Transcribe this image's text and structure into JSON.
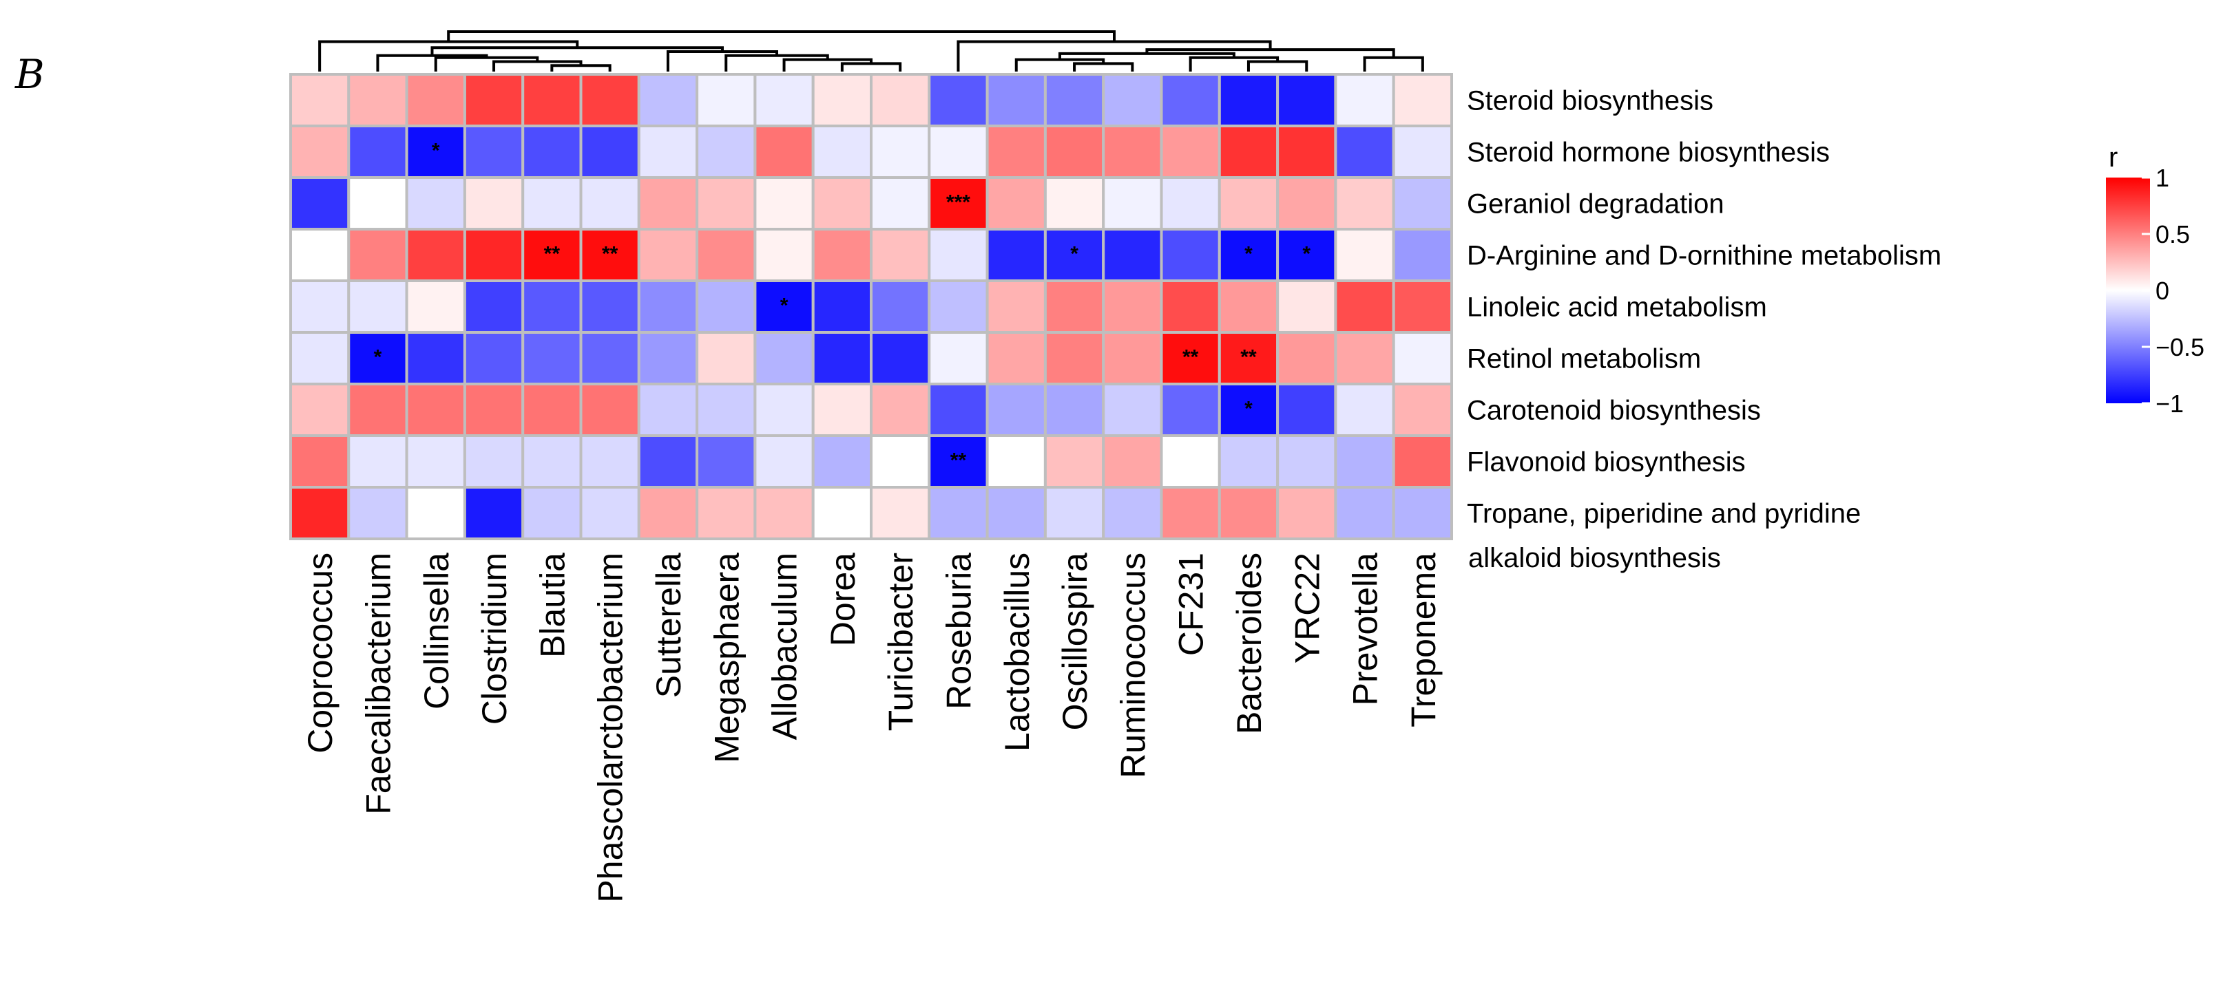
{
  "panel_label": "B",
  "chart_data": {
    "type": "heatmap",
    "title": "",
    "rows": [
      "Steroid biosynthesis",
      "Steroid hormone biosynthesis",
      "Geraniol degradation",
      "D-Arginine and D-ornithine metabolism",
      "Linoleic acid metabolism",
      "Retinol metabolism",
      "Carotenoid biosynthesis",
      "Flavonoid biosynthesis",
      "Tropane, piperidine and pyridine"
    ],
    "row_label_continuation": "alkaloid biosynthesis",
    "columns": [
      "Coprococcus",
      "Faecalibacterium",
      "Collinsella",
      "Clostridium",
      "Blautia",
      "Phascolarctobacterium",
      "Sutterella",
      "Megasphaera",
      "Allobaculum",
      "Dorea",
      "Turicibacter",
      "Roseburia",
      "Lactobacillus",
      "Oscillospira",
      "Ruminococcus",
      "CF231",
      "Bacteroides",
      "YRC22",
      "Prevotella",
      "Treponema"
    ],
    "values": [
      [
        0.2,
        0.3,
        0.45,
        0.75,
        0.75,
        0.75,
        -0.25,
        -0.05,
        -0.08,
        0.1,
        0.15,
        -0.65,
        -0.45,
        -0.5,
        -0.3,
        -0.6,
        -0.9,
        -0.9,
        -0.05,
        0.1
      ],
      [
        0.3,
        -0.7,
        -0.95,
        -0.65,
        -0.7,
        -0.75,
        -0.1,
        -0.2,
        0.55,
        -0.1,
        -0.05,
        -0.05,
        0.5,
        0.55,
        0.5,
        0.4,
        0.8,
        0.8,
        -0.7,
        -0.1
      ],
      [
        -0.8,
        0.0,
        -0.15,
        0.1,
        -0.1,
        -0.1,
        0.35,
        0.25,
        0.05,
        0.25,
        -0.05,
        0.95,
        0.35,
        0.05,
        -0.05,
        -0.1,
        0.25,
        0.35,
        0.2,
        -0.25
      ],
      [
        0.0,
        0.5,
        0.75,
        0.85,
        0.95,
        0.95,
        0.3,
        0.45,
        0.05,
        0.45,
        0.25,
        -0.1,
        -0.85,
        -0.85,
        -0.85,
        -0.7,
        -0.95,
        -0.95,
        0.05,
        -0.4
      ],
      [
        -0.1,
        -0.1,
        0.05,
        -0.75,
        -0.65,
        -0.65,
        -0.45,
        -0.3,
        -0.95,
        -0.85,
        -0.55,
        -0.25,
        0.3,
        0.5,
        0.4,
        0.7,
        0.4,
        0.1,
        0.7,
        0.65
      ],
      [
        -0.1,
        -0.95,
        -0.8,
        -0.65,
        -0.6,
        -0.6,
        -0.4,
        0.15,
        -0.3,
        -0.85,
        -0.85,
        -0.05,
        0.35,
        0.5,
        0.4,
        0.95,
        0.9,
        0.4,
        0.35,
        -0.05
      ],
      [
        0.25,
        0.55,
        0.55,
        0.55,
        0.55,
        0.55,
        -0.2,
        -0.2,
        -0.1,
        0.1,
        0.3,
        -0.7,
        -0.35,
        -0.35,
        -0.2,
        -0.6,
        -0.95,
        -0.75,
        -0.1,
        0.3
      ],
      [
        0.55,
        -0.1,
        -0.1,
        -0.15,
        -0.15,
        -0.15,
        -0.7,
        -0.6,
        -0.1,
        -0.3,
        0.0,
        -0.95,
        0.0,
        0.25,
        0.35,
        0.0,
        -0.2,
        -0.2,
        -0.3,
        0.6
      ],
      [
        0.85,
        -0.2,
        0.0,
        -0.9,
        -0.2,
        -0.15,
        0.35,
        0.25,
        0.25,
        0.0,
        0.1,
        -0.3,
        -0.3,
        -0.15,
        -0.25,
        0.45,
        0.45,
        0.3,
        -0.3,
        -0.3
      ]
    ],
    "significance": [
      [
        "",
        "",
        "",
        "",
        "",
        "",
        "",
        "",
        "",
        "",
        "",
        "",
        "",
        "",
        "",
        "",
        "",
        "",
        "",
        ""
      ],
      [
        "",
        "",
        "*",
        "",
        "",
        "",
        "",
        "",
        "",
        "",
        "",
        "",
        "",
        "",
        "",
        "",
        "",
        "",
        "",
        ""
      ],
      [
        "",
        "",
        "",
        "",
        "",
        "",
        "",
        "",
        "",
        "",
        "",
        "***",
        "",
        "",
        "",
        "",
        "",
        "",
        "",
        ""
      ],
      [
        "",
        "",
        "",
        "",
        "**",
        "**",
        "",
        "",
        "",
        "",
        "",
        "",
        "",
        "*",
        "",
        "",
        "*",
        "*",
        "",
        ""
      ],
      [
        "",
        "",
        "",
        "",
        "",
        "",
        "",
        "",
        "*",
        "",
        "",
        "",
        "",
        "",
        "",
        "",
        "",
        "",
        "",
        ""
      ],
      [
        "",
        "*",
        "",
        "",
        "",
        "",
        "",
        "",
        "",
        "",
        "",
        "",
        "",
        "",
        "",
        "**",
        "**",
        "",
        "",
        ""
      ],
      [
        "",
        "",
        "",
        "",
        "",
        "",
        "",
        "",
        "",
        "",
        "",
        "",
        "",
        "",
        "",
        "",
        "*",
        "",
        "",
        ""
      ],
      [
        "",
        "",
        "",
        "",
        "",
        "",
        "",
        "",
        "",
        "",
        "",
        "**",
        "",
        "",
        "",
        "",
        "",
        "",
        "",
        ""
      ],
      [
        "",
        "",
        "",
        "",
        "",
        "",
        "",
        "",
        "",
        "",
        "",
        "",
        "",
        "",
        "",
        "",
        "",
        "",
        "",
        ""
      ]
    ],
    "color_scale": {
      "low": "#0000ff",
      "mid": "#ffffff",
      "high": "#ff0000",
      "range": [
        -1,
        1
      ],
      "cell_border": "#bebebe"
    },
    "legend": {
      "title": "r",
      "ticks": [
        "1",
        "0.5",
        "0",
        "−0.5",
        "−1"
      ],
      "tick_values": [
        1,
        0.5,
        0,
        -0.5,
        -1
      ],
      "placement": "right"
    },
    "column_dendrogram": {
      "merges": [
        [
          4,
          5,
          0.15
        ],
        [
          3,
          20,
          0.25
        ],
        [
          2,
          21,
          0.35
        ],
        [
          1,
          22,
          0.4
        ],
        [
          9,
          10,
          0.2
        ],
        [
          8,
          24,
          0.3
        ],
        [
          7,
          25,
          0.4
        ],
        [
          6,
          26,
          0.5
        ],
        [
          23,
          27,
          0.6
        ],
        [
          0,
          28,
          0.75
        ],
        [
          13,
          14,
          0.2
        ],
        [
          12,
          30,
          0.3
        ],
        [
          16,
          17,
          0.25
        ],
        [
          15,
          32,
          0.35
        ],
        [
          31,
          33,
          0.45
        ],
        [
          18,
          19,
          0.35
        ],
        [
          34,
          35,
          0.55
        ],
        [
          11,
          36,
          0.75
        ],
        [
          29,
          37,
          1.0
        ]
      ]
    }
  }
}
